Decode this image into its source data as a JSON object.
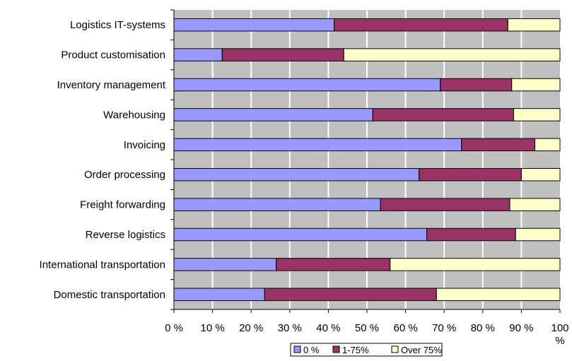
{
  "chart_data": {
    "type": "bar",
    "orientation": "horizontal",
    "stacked": true,
    "categories": [
      "Logistics IT-systems",
      "Product customisation",
      "Inventory management",
      "Warehousing",
      "Invoicing",
      "Order processing",
      "Freight forwarding",
      "Reverse logistics",
      "International transportation",
      "Domestic transportation"
    ],
    "series": [
      {
        "name": "0 %",
        "color": "#9999ff",
        "values": [
          41.5,
          12.5,
          69,
          51.5,
          74.5,
          63.5,
          53.5,
          65.5,
          26.5,
          23.5
        ]
      },
      {
        "name": "1-75%",
        "color": "#993366",
        "values": [
          45,
          31.5,
          18.5,
          36.5,
          19,
          26.5,
          33.5,
          23,
          29.5,
          44.5
        ]
      },
      {
        "name": "Over 75%",
        "color": "#ffffcc",
        "values": [
          13.5,
          56,
          12.5,
          12,
          6.5,
          10,
          13,
          11.5,
          44,
          32
        ]
      }
    ],
    "xlim": [
      0,
      100
    ],
    "xticks": [
      "0 %",
      "10 %",
      "20 %",
      "30 %",
      "40 %",
      "50 %",
      "60 %",
      "70 %",
      "80 %",
      "90 %",
      "100 %"
    ],
    "grid": true,
    "plot_background": "#c0c0c0",
    "legend_position": "bottom",
    "title": "",
    "xlabel": "",
    "ylabel": ""
  }
}
